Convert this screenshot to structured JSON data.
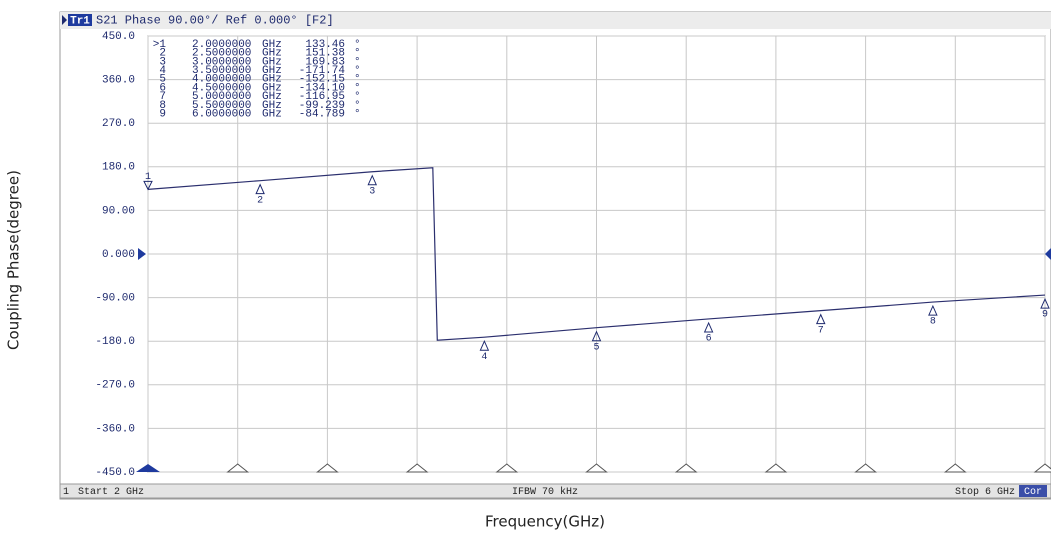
{
  "chart_data": {
    "type": "line",
    "header": {
      "trace": "Tr1",
      "text": "S21 Phase 90.00°/ Ref 0.000° [F2]"
    },
    "footer": {
      "channel": "1",
      "start": "Start 2 GHz",
      "ifbw": "IFBW 70 kHz",
      "stop": "Stop 6 GHz",
      "cor": "Cor"
    },
    "xlabel": "Frequency(GHz)",
    "ylabel": "Coupling Phase(degree)",
    "xlim": [
      2,
      6
    ],
    "ylim": [
      -450,
      450
    ],
    "yticks": [
      {
        "value": 450,
        "label": "450.0"
      },
      {
        "value": 360,
        "label": "360.0"
      },
      {
        "value": 270,
        "label": "270.0"
      },
      {
        "value": 180,
        "label": "180.0"
      },
      {
        "value": 90,
        "label": "90.00"
      },
      {
        "value": 0,
        "label": "0.000"
      },
      {
        "value": -90,
        "label": "-90.00"
      },
      {
        "value": -180,
        "label": "-180.0"
      },
      {
        "value": -270,
        "label": "-270.0"
      },
      {
        "value": -360,
        "label": "-360.0"
      },
      {
        "value": -450,
        "label": "-450.0"
      }
    ],
    "xticks": [
      2,
      2.4,
      2.8,
      3.2,
      3.6,
      4,
      4.4,
      4.8,
      5.2,
      5.6,
      6
    ],
    "grid": true,
    "series": [
      {
        "color": "#2b2f6e",
        "x": [
          2,
          2.5,
          3,
          3.27,
          3.29,
          3.5,
          4,
          4.5,
          5,
          5.5,
          6
        ],
        "values": [
          133.46,
          151.38,
          169.83,
          178,
          -178,
          -171.74,
          -152.15,
          -134.1,
          -116.95,
          -99.239,
          -84.789
        ]
      }
    ],
    "markers": {
      "names": [
        ">1",
        "2",
        "3",
        "4",
        "5",
        "6",
        "7",
        "8",
        "9"
      ],
      "labels": [
        "1",
        "2",
        "3",
        "4",
        "5",
        "6",
        "7",
        "8",
        "9"
      ],
      "x": [
        {
          "value": 2,
          "label": "2.0000000"
        },
        {
          "value": 2.5,
          "label": "2.5000000"
        },
        {
          "value": 3,
          "label": "3.0000000"
        },
        {
          "value": 3.5,
          "label": "3.5000000"
        },
        {
          "value": 4,
          "label": "4.0000000"
        },
        {
          "value": 4.5,
          "label": "4.5000000"
        },
        {
          "value": 5,
          "label": "5.0000000"
        },
        {
          "value": 5.5,
          "label": "5.5000000"
        },
        {
          "value": 6,
          "label": "6.0000000"
        }
      ],
      "x_unit": "GHz",
      "values": [
        133.46,
        151.38,
        169.83,
        -171.74,
        -152.15,
        -134.1,
        -116.95,
        -99.239,
        -84.789
      ],
      "value_labels": [
        "133.46",
        "151.38",
        "169.83",
        "-171.74",
        "-152.15",
        "-134.10",
        "-116.95",
        "-99.239",
        "-84.789"
      ],
      "value_unit": "°"
    }
  }
}
